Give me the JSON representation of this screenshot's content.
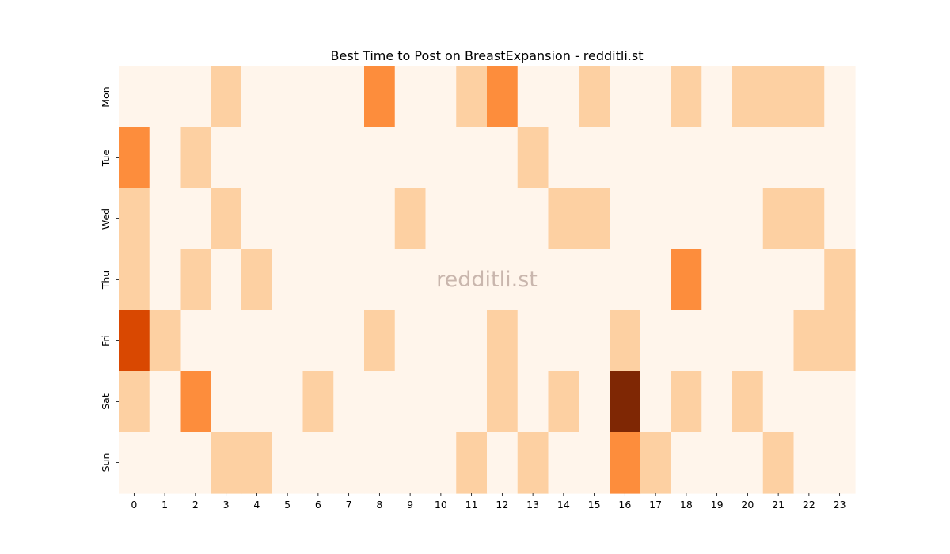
{
  "chart_data": {
    "type": "heatmap",
    "title": "Best Time to Post on BreastExpansion - redditli.st",
    "xlabel": "",
    "ylabel": "",
    "watermark": "redditli.st",
    "colormap": "Oranges",
    "colorbar": false,
    "grid": false,
    "vmin": 0,
    "vmax": 4,
    "x": [
      "0",
      "1",
      "2",
      "3",
      "4",
      "5",
      "6",
      "7",
      "8",
      "9",
      "10",
      "11",
      "12",
      "13",
      "14",
      "15",
      "16",
      "17",
      "18",
      "19",
      "20",
      "21",
      "22",
      "23"
    ],
    "y": [
      "Mon",
      "Tue",
      "Wed",
      "Thu",
      "Fri",
      "Sat",
      "Sun"
    ],
    "values": [
      [
        0,
        0,
        0,
        1,
        0,
        0,
        0,
        0,
        2,
        0,
        0,
        1,
        2,
        0,
        0,
        1,
        0,
        0,
        1,
        0,
        1,
        1,
        1,
        0
      ],
      [
        2,
        0,
        1,
        0,
        0,
        0,
        0,
        0,
        0,
        0,
        0,
        0,
        0,
        1,
        0,
        0,
        0,
        0,
        0,
        0,
        0,
        0,
        0,
        0
      ],
      [
        1,
        0,
        0,
        1,
        0,
        0,
        0,
        0,
        0,
        1,
        0,
        0,
        0,
        0,
        1,
        1,
        0,
        0,
        0,
        0,
        0,
        1,
        1,
        0
      ],
      [
        1,
        0,
        1,
        0,
        1,
        0,
        0,
        0,
        0,
        0,
        0,
        0,
        0,
        0,
        0,
        0,
        0,
        0,
        2,
        0,
        0,
        0,
        0,
        1
      ],
      [
        3,
        1,
        0,
        0,
        0,
        0,
        0,
        0,
        1,
        0,
        0,
        0,
        1,
        0,
        0,
        0,
        1,
        0,
        0,
        0,
        0,
        0,
        1,
        1
      ],
      [
        1,
        0,
        2,
        0,
        0,
        0,
        1,
        0,
        0,
        0,
        0,
        0,
        1,
        0,
        1,
        0,
        4,
        0,
        1,
        0,
        1,
        0,
        0,
        0
      ],
      [
        0,
        0,
        0,
        1,
        1,
        0,
        0,
        0,
        0,
        0,
        0,
        1,
        0,
        1,
        0,
        0,
        2,
        1,
        0,
        0,
        0,
        1,
        0,
        0
      ]
    ]
  }
}
